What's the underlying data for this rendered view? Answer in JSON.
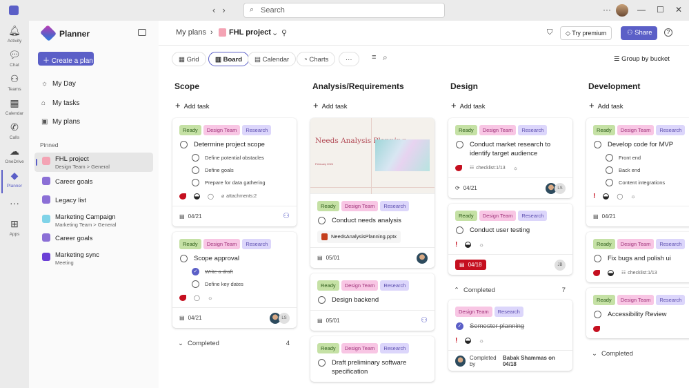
{
  "titlebar": {
    "search_placeholder": "Search",
    "more": "···",
    "minimize": "—",
    "maximize": "☐",
    "close": "✕"
  },
  "rail": [
    {
      "label": "Activity",
      "icon": "bell-icon",
      "glyph": "🔔︎"
    },
    {
      "label": "Chat",
      "icon": "chat-icon",
      "glyph": "💬︎"
    },
    {
      "label": "Teams",
      "icon": "teams-icon",
      "glyph": "⚇"
    },
    {
      "label": "Calendar",
      "icon": "calendar-icon",
      "glyph": "▦"
    },
    {
      "label": "Calls",
      "icon": "phone-icon",
      "glyph": "✆"
    },
    {
      "label": "OneDrive",
      "icon": "cloud-icon",
      "glyph": "☁"
    },
    {
      "label": "Planner",
      "icon": "planner-icon",
      "glyph": "◆",
      "active": true
    },
    {
      "label": "",
      "icon": "more-icon",
      "glyph": "···"
    },
    {
      "label": "Apps",
      "icon": "apps-icon",
      "glyph": "⊞"
    }
  ],
  "sidebar": {
    "app_title": "Planner",
    "create_label": "Create a plan",
    "nav": [
      {
        "label": "My Day",
        "glyph": "☼"
      },
      {
        "label": "My tasks",
        "glyph": "⌂"
      },
      {
        "label": "My plans",
        "glyph": "▣"
      }
    ],
    "pinned_heading": "Pinned",
    "pinned": [
      {
        "title": "FHL project",
        "subtitle": "Design Team > General",
        "active": true,
        "color": "#f4a3b4"
      },
      {
        "title": "Career goals",
        "subtitle": "",
        "color": "#8b6fd6"
      },
      {
        "title": "Legacy list",
        "subtitle": "",
        "color": "#8b6fd6"
      },
      {
        "title": "Marketing Campaign",
        "subtitle": "Marketing Team > General",
        "color": "#7fd3e8"
      },
      {
        "title": "Career goals",
        "subtitle": "",
        "color": "#8b6fd6"
      },
      {
        "title": "Marketing sync",
        "subtitle": "Meeting",
        "color": "#6b3fd6"
      }
    ]
  },
  "header": {
    "breadcrumb_root": "My plans",
    "plan_name": "FHL project",
    "try_premium": "Try premium",
    "share": "Share",
    "help": "?"
  },
  "views": [
    {
      "label": "Grid",
      "glyph": "▦"
    },
    {
      "label": "Board",
      "glyph": "▥",
      "active": true
    },
    {
      "label": "Calendar",
      "glyph": "▤"
    },
    {
      "label": "Charts",
      "glyph": "◔"
    },
    {
      "label": "···",
      "glyph": ""
    }
  ],
  "group_by": "Group by bucket",
  "add_task": "Add task",
  "completed_label": "Completed",
  "completed_by_prefix": "Completed by",
  "buckets": [
    {
      "title": "Scope",
      "cards": [
        {
          "tags": [
            "Ready",
            "Design Team",
            "Research"
          ],
          "title": "Determine project scope",
          "subtasks": [
            {
              "text": "Define potential obstacles"
            },
            {
              "text": "Define goals"
            },
            {
              "text": "Prepare for data gathering"
            }
          ],
          "indicators": [
            "urgent",
            "progress",
            "comment",
            "attachments:2"
          ],
          "footer": {
            "date": "04/21",
            "assign": "add"
          }
        },
        {
          "tags": [
            "Ready",
            "Design Team",
            "Research"
          ],
          "title": "Scope approval",
          "subtasks": [
            {
              "text": "Write a draft",
              "done": true
            },
            {
              "text": "Define key dates"
            }
          ],
          "indicators": [
            "urgent",
            "comment",
            "recurrence"
          ],
          "footer": {
            "date": "04/21",
            "assignees": [
              "photo",
              "LS"
            ]
          }
        }
      ],
      "completed": {
        "count": "4",
        "expanded": false
      }
    },
    {
      "title": "Analysis/Requirements",
      "cards": [
        {
          "image": {
            "title": "Needs Analysis Planning",
            "subtitle": "February 2024"
          },
          "tags": [
            "Ready",
            "Design Team",
            "Research"
          ],
          "title": "Conduct needs analysis",
          "attachment": "NeedsAnalysisPlanning.pptx",
          "indicators": [],
          "footer": {
            "date": "05/01",
            "assignees": [
              "photo"
            ]
          }
        },
        {
          "tags": [
            "Ready",
            "Design Team",
            "Research"
          ],
          "title": "Design backend",
          "indicators": [],
          "footer": {
            "date": "05/01",
            "assign": "add"
          }
        },
        {
          "tags": [
            "Ready",
            "Design Team",
            "Research"
          ],
          "title": "Draft preliminary software specification",
          "indicators": []
        }
      ]
    },
    {
      "title": "Design",
      "cards": [
        {
          "tags": [
            "Ready",
            "Design Team",
            "Research"
          ],
          "title": "Conduct market research to identify target audience",
          "indicators": [
            "urgent",
            "checklist:1/13",
            "recurrence"
          ],
          "footer": {
            "date": "04/21",
            "repeat": true,
            "assignees": [
              "photo",
              "LS"
            ]
          }
        },
        {
          "tags": [
            "Ready",
            "Design Team",
            "Research"
          ],
          "title": "Conduct user testing",
          "indicators": [
            "priority",
            "progress",
            "recurrence"
          ],
          "footer": {
            "date": "04/18",
            "overdue": true,
            "assignees": [
              "JB"
            ]
          }
        }
      ],
      "completed": {
        "count": "7",
        "expanded": true,
        "cards": [
          {
            "tags": [
              "Design Team",
              "Research"
            ],
            "title": "Semester planning",
            "done": true,
            "indicators": [
              "priority",
              "progress",
              "recurrence"
            ],
            "footer": {
              "completed_by": "Babak Shammas on 04/18"
            }
          }
        ]
      }
    },
    {
      "title": "Development",
      "cards": [
        {
          "tags": [
            "Ready",
            "Design Team",
            "Research"
          ],
          "title": "Develop code for MVP",
          "subtasks": [
            {
              "text": "Front end"
            },
            {
              "text": "Back end"
            },
            {
              "text": "Content integrations"
            }
          ],
          "indicators": [
            "priority",
            "progress",
            "comment",
            "recurrence"
          ],
          "footer": {
            "date": "04/21",
            "assignees": [
              "photo"
            ]
          }
        },
        {
          "tags": [
            "Ready",
            "Design Team",
            "Research"
          ],
          "title": "Fix bugs and polish ui",
          "indicators": [
            "urgent",
            "progress",
            "checklist:1/13"
          ]
        },
        {
          "tags": [
            "Ready",
            "Design Team",
            "Research"
          ],
          "title": "Accessibility Review",
          "indicators": [
            "urgent"
          ]
        }
      ],
      "completed": {
        "count": "",
        "expanded": false
      }
    }
  ],
  "colors": {
    "accent": "#5b5fc7",
    "urgent": "#c50f1f",
    "ready": "#c5e1a5",
    "design_team": "#f8c6e4",
    "research": "#dcd6fb"
  }
}
